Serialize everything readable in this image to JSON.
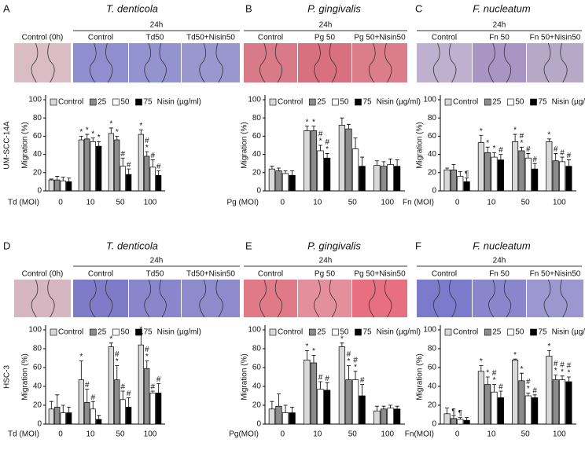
{
  "chart_data": [
    {
      "type": "bar",
      "panel": "A",
      "title": "T. denticola",
      "header": "24h",
      "image_labels": [
        "Control (0h)",
        "Control",
        "Td50",
        "Td50+Nisin50"
      ],
      "row_label": "UM-SCC-14A",
      "y_label": "Migration (%)",
      "x_label": "Td (MOI)",
      "legend_title": "Nisin (µg/ml)",
      "categories": [
        "0",
        "10",
        "50",
        "100"
      ],
      "ylim": [
        0,
        100
      ],
      "yticks": [
        0,
        20,
        40,
        60,
        80,
        100
      ],
      "series": [
        {
          "name": "Control",
          "color": "#d9d9d9",
          "values": [
            12,
            56,
            63,
            62
          ],
          "errors": [
            1,
            4,
            6,
            5
          ],
          "marks": [
            [],
            [
              "*"
            ],
            [
              "*"
            ],
            [
              "*"
            ]
          ]
        },
        {
          "name": "25",
          "color": "#8c8c8c",
          "values": [
            12,
            57,
            56,
            38
          ],
          "errors": [
            4,
            5,
            4,
            5
          ],
          "marks": [
            [],
            [
              "*"
            ],
            [
              "*"
            ],
            [
              "#",
              "*"
            ]
          ]
        },
        {
          "name": "50",
          "color": "#ffffff",
          "values": [
            11,
            54,
            27,
            26
          ],
          "errors": [
            4,
            4,
            9,
            8
          ],
          "marks": [
            [],
            [
              "*"
            ],
            [
              "#"
            ],
            [
              "#"
            ]
          ]
        },
        {
          "name": "75",
          "color": "#000000",
          "values": [
            10,
            49,
            18,
            17
          ],
          "errors": [
            4,
            5,
            6,
            5
          ],
          "marks": [
            [],
            [
              "*"
            ],
            [
              "#"
            ],
            [
              "#"
            ]
          ]
        }
      ]
    },
    {
      "type": "bar",
      "panel": "B",
      "title": "P. gingivalis",
      "header": "24h",
      "image_labels": [
        "Control",
        "Pg 50",
        "Pg 50+Nisin50"
      ],
      "y_label": "Migration (%)",
      "x_label": "Pg (MOI)",
      "legend_title": "Nisin (µg/ml)",
      "categories": [
        "0",
        "10",
        "50",
        "100"
      ],
      "ylim": [
        0,
        100
      ],
      "yticks": [
        0,
        20,
        40,
        60,
        80,
        100
      ],
      "series": [
        {
          "name": "Control",
          "color": "#d9d9d9",
          "values": [
            24,
            66,
            72,
            28
          ],
          "errors": [
            3,
            5,
            8,
            5
          ],
          "marks": [
            [],
            [
              "*"
            ],
            [],
            []
          ]
        },
        {
          "name": "25",
          "color": "#8c8c8c",
          "values": [
            22,
            66,
            68,
            27
          ],
          "errors": [
            3,
            5,
            5,
            5
          ],
          "marks": [
            [],
            [
              "*"
            ],
            [],
            []
          ]
        },
        {
          "name": "50",
          "color": "#ffffff",
          "values": [
            19,
            44,
            46,
            29
          ],
          "errors": [
            3,
            6,
            12,
            6
          ],
          "marks": [
            [],
            [
              "#",
              "*"
            ],
            [],
            []
          ]
        },
        {
          "name": "75",
          "color": "#000000",
          "values": [
            17,
            36,
            27,
            27
          ],
          "errors": [
            5,
            5,
            10,
            7
          ],
          "marks": [
            [],
            [
              "#",
              "*"
            ],
            [],
            []
          ]
        }
      ]
    },
    {
      "type": "bar",
      "panel": "C",
      "title": "F. nucleatum",
      "header": "24h",
      "image_labels": [
        "Control",
        "Fn 50",
        "Fn 50+Nisin50"
      ],
      "y_label": "Migration (%)",
      "x_label": "Fn (MOI)",
      "legend_title": "Nisin (µg/ml)",
      "categories": [
        "0",
        "10",
        "50",
        "100"
      ],
      "ylim": [
        0,
        100
      ],
      "yticks": [
        0,
        20,
        40,
        60,
        80,
        100
      ],
      "series": [
        {
          "name": "Control",
          "color": "#d9d9d9",
          "values": [
            23,
            53,
            54,
            54
          ],
          "errors": [
            2,
            8,
            8,
            3
          ],
          "marks": [
            [],
            [
              "*"
            ],
            [
              "*"
            ],
            [
              "*"
            ]
          ]
        },
        {
          "name": "25",
          "color": "#8c8c8c",
          "values": [
            23,
            42,
            44,
            33
          ],
          "errors": [
            6,
            6,
            4,
            8
          ],
          "marks": [
            [],
            [
              "*"
            ],
            [
              "#",
              "*"
            ],
            [
              "#"
            ]
          ]
        },
        {
          "name": "50",
          "color": "#ffffff",
          "values": [
            16,
            37,
            36,
            32
          ],
          "errors": [
            5,
            5,
            5,
            5
          ],
          "marks": [
            [],
            [
              "*"
            ],
            [
              "#"
            ],
            [
              "#"
            ]
          ]
        },
        {
          "name": "75",
          "color": "#000000",
          "values": [
            10,
            34,
            24,
            27
          ],
          "errors": [
            4,
            6,
            6,
            7
          ],
          "marks": [
            [
              "¶"
            ],
            [
              "#"
            ],
            [
              "#"
            ],
            [
              "#"
            ]
          ]
        }
      ]
    },
    {
      "type": "bar",
      "panel": "D",
      "title": "T. denticola",
      "header": "24h",
      "image_labels": [
        "Control (0h)",
        "Control",
        "Td50",
        "Td50+Nisin50"
      ],
      "row_label": "HSC-3",
      "y_label": "Migration (%)",
      "x_label": "Td (MOI)",
      "legend_title": "Nisin (µg/ml)",
      "categories": [
        "0",
        "10",
        "50",
        "100"
      ],
      "ylim": [
        0,
        100
      ],
      "yticks": [
        0,
        20,
        40,
        60,
        80,
        100
      ],
      "series": [
        {
          "name": "Control",
          "color": "#d9d9d9",
          "values": [
            16,
            47,
            82,
            84
          ],
          "errors": [
            8,
            20,
            4,
            12
          ],
          "marks": [
            [],
            [
              "*"
            ],
            [
              "*"
            ],
            [
              "*"
            ]
          ]
        },
        {
          "name": "25",
          "color": "#8c8c8c",
          "values": [
            18,
            23,
            47,
            59
          ],
          "errors": [
            13,
            14,
            15,
            8
          ],
          "marks": [
            [],
            [
              "#"
            ],
            [
              "#",
              "*"
            ],
            [
              "#",
              "*"
            ]
          ]
        },
        {
          "name": "50",
          "color": "#ffffff",
          "values": [
            12,
            16,
            26,
            33
          ],
          "errors": [
            8,
            8,
            9,
            2
          ],
          "marks": [
            [],
            [
              "#"
            ],
            [
              "#"
            ],
            [
              "#"
            ]
          ]
        },
        {
          "name": "75",
          "color": "#000000",
          "values": [
            12,
            5,
            18,
            33
          ],
          "errors": [
            6,
            4,
            10,
            10
          ],
          "marks": [
            [],
            [],
            [
              "#"
            ],
            [
              "#"
            ]
          ]
        }
      ]
    },
    {
      "type": "bar",
      "panel": "E",
      "title": "P. gingivalis",
      "header": "24h",
      "image_labels": [
        "Control",
        "Pg 50",
        "Pg 50+Nisin50"
      ],
      "y_label": "Migration (%)",
      "x_label": "Pg(MOI)",
      "legend_title": "Nisin (µg/ml)",
      "categories": [
        "0",
        "10",
        "50",
        "100"
      ],
      "ylim": [
        0,
        100
      ],
      "yticks": [
        0,
        20,
        40,
        60,
        80,
        100
      ],
      "series": [
        {
          "name": "Control",
          "color": "#d9d9d9",
          "values": [
            16,
            68,
            82,
            14
          ],
          "errors": [
            8,
            10,
            4,
            5
          ],
          "marks": [
            [],
            [
              "*"
            ],
            [
              "*"
            ],
            []
          ]
        },
        {
          "name": "25",
          "color": "#8c8c8c",
          "values": [
            19,
            65,
            47,
            16
          ],
          "errors": [
            13,
            8,
            15,
            3
          ],
          "marks": [
            [],
            [
              "*"
            ],
            [
              "#",
              "*"
            ],
            []
          ]
        },
        {
          "name": "50",
          "color": "#ffffff",
          "values": [
            12,
            37,
            47,
            17
          ],
          "errors": [
            8,
            8,
            9,
            3
          ],
          "marks": [
            [],
            [
              "#"
            ],
            [
              "#",
              "*"
            ],
            []
          ]
        },
        {
          "name": "75",
          "color": "#000000",
          "values": [
            12,
            36,
            30,
            16
          ],
          "errors": [
            6,
            8,
            12,
            3
          ],
          "marks": [
            [],
            [
              "#"
            ],
            [
              "#"
            ],
            []
          ]
        }
      ]
    },
    {
      "type": "bar",
      "panel": "F",
      "title": "F. nucleatum",
      "header": "24h",
      "image_labels": [
        "Control",
        "Fn 50",
        "Fn 50+Nisin50"
      ],
      "y_label": "Migration (%)",
      "x_label": "Fn(MOI)",
      "legend_title": "Nisin (µg/ml)",
      "categories": [
        "0",
        "10",
        "50",
        "100"
      ],
      "ylim": [
        0,
        100
      ],
      "yticks": [
        0,
        20,
        40,
        60,
        80,
        100
      ],
      "series": [
        {
          "name": "Control",
          "color": "#d9d9d9",
          "values": [
            11,
            56,
            68,
            72
          ],
          "errors": [
            6,
            6,
            1,
            6
          ],
          "marks": [
            [],
            [
              "*"
            ],
            [
              "*"
            ],
            [
              "*"
            ]
          ]
        },
        {
          "name": "25",
          "color": "#8c8c8c",
          "values": [
            6,
            42,
            46,
            47
          ],
          "errors": [
            3,
            8,
            8,
            5
          ],
          "marks": [
            [
              "¶"
            ],
            [
              "*"
            ],
            [
              "*"
            ],
            [
              "#",
              "*"
            ]
          ]
        },
        {
          "name": "50",
          "color": "#ffffff",
          "values": [
            5,
            34,
            30,
            47
          ],
          "errors": [
            2,
            8,
            3,
            4
          ],
          "marks": [
            [
              "¶"
            ],
            [
              "#",
              "*"
            ],
            [
              "#",
              "*"
            ],
            [
              "#",
              "*"
            ]
          ]
        },
        {
          "name": "75",
          "color": "#000000",
          "values": [
            4,
            28,
            28,
            45
          ],
          "errors": [
            3,
            7,
            3,
            5
          ],
          "marks": [
            [],
            [
              "#"
            ],
            [
              "#"
            ],
            [
              "#",
              "*"
            ]
          ]
        }
      ]
    }
  ]
}
